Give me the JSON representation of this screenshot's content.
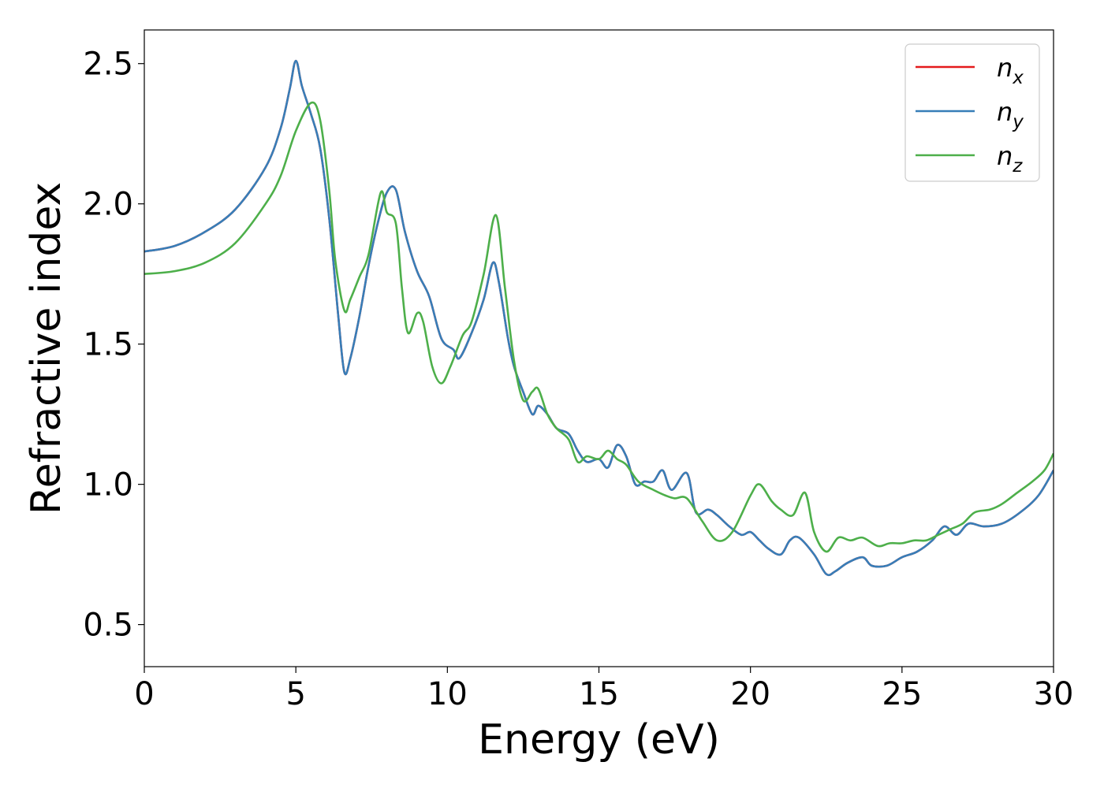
{
  "chart_data": {
    "type": "line",
    "title": "",
    "xlabel": "Energy (eV)",
    "ylabel": "Refractive index",
    "xlim": [
      0,
      30
    ],
    "ylim": [
      0.35,
      2.62
    ],
    "xticks": [
      0,
      5,
      10,
      15,
      20,
      25,
      30
    ],
    "xtick_labels": [
      "0",
      "5",
      "10",
      "15",
      "20",
      "25",
      "30"
    ],
    "yticks": [
      0.5,
      1.0,
      1.5,
      2.0,
      2.5
    ],
    "ytick_labels": [
      "0.5",
      "1.0",
      "1.5",
      "2.0",
      "2.5"
    ],
    "grid": false,
    "legend_position": "top-right",
    "series": [
      {
        "name": "n_x",
        "legend_base": "n",
        "legend_sub": "x",
        "color": "#e41a1c",
        "x": [
          0,
          1,
          2,
          3,
          4,
          4.5,
          4.8,
          5.0,
          5.2,
          5.5,
          5.8,
          6.1,
          6.4,
          6.6,
          6.8,
          7.1,
          7.4,
          7.7,
          8.0,
          8.3,
          8.6,
          9.0,
          9.4,
          9.8,
          10.2,
          10.4,
          10.8,
          11.2,
          11.5,
          11.7,
          12.0,
          12.2,
          12.5,
          12.8,
          13.0,
          13.3,
          13.6,
          14.0,
          14.3,
          14.6,
          15.0,
          15.3,
          15.6,
          15.9,
          16.2,
          16.5,
          16.8,
          17.1,
          17.4,
          17.9,
          18.2,
          18.6,
          18.9,
          19.3,
          19.7,
          20.0,
          20.3,
          20.6,
          21.0,
          21.3,
          21.6,
          22.1,
          22.5,
          22.8,
          23.2,
          23.7,
          24.0,
          24.5,
          25.0,
          25.5,
          26.0,
          26.4,
          26.8,
          27.2,
          27.7,
          28.3,
          28.9,
          29.5,
          30.0
        ],
        "y": [
          1.83,
          1.85,
          1.9,
          1.98,
          2.13,
          2.27,
          2.41,
          2.51,
          2.42,
          2.32,
          2.2,
          1.95,
          1.6,
          1.4,
          1.45,
          1.6,
          1.78,
          1.93,
          2.04,
          2.05,
          1.9,
          1.76,
          1.67,
          1.52,
          1.48,
          1.45,
          1.54,
          1.66,
          1.79,
          1.72,
          1.52,
          1.42,
          1.33,
          1.25,
          1.28,
          1.25,
          1.2,
          1.18,
          1.12,
          1.08,
          1.09,
          1.06,
          1.14,
          1.1,
          1.0,
          1.01,
          1.01,
          1.05,
          0.98,
          1.04,
          0.9,
          0.91,
          0.89,
          0.85,
          0.82,
          0.83,
          0.8,
          0.77,
          0.75,
          0.8,
          0.81,
          0.75,
          0.68,
          0.69,
          0.72,
          0.74,
          0.71,
          0.71,
          0.74,
          0.76,
          0.8,
          0.85,
          0.82,
          0.86,
          0.85,
          0.86,
          0.9,
          0.96,
          1.05
        ]
      },
      {
        "name": "n_y",
        "legend_base": "n",
        "legend_sub": "y",
        "color": "#377eb8",
        "x": [
          0,
          1,
          2,
          3,
          4,
          4.5,
          4.8,
          5.0,
          5.2,
          5.5,
          5.8,
          6.1,
          6.4,
          6.6,
          6.8,
          7.1,
          7.4,
          7.7,
          8.0,
          8.3,
          8.6,
          9.0,
          9.4,
          9.8,
          10.2,
          10.4,
          10.8,
          11.2,
          11.5,
          11.7,
          12.0,
          12.2,
          12.5,
          12.8,
          13.0,
          13.3,
          13.6,
          14.0,
          14.3,
          14.6,
          15.0,
          15.3,
          15.6,
          15.9,
          16.2,
          16.5,
          16.8,
          17.1,
          17.4,
          17.9,
          18.2,
          18.6,
          18.9,
          19.3,
          19.7,
          20.0,
          20.3,
          20.6,
          21.0,
          21.3,
          21.6,
          22.1,
          22.5,
          22.8,
          23.2,
          23.7,
          24.0,
          24.5,
          25.0,
          25.5,
          26.0,
          26.4,
          26.8,
          27.2,
          27.7,
          28.3,
          28.9,
          29.5,
          30.0
        ],
        "y": [
          1.83,
          1.85,
          1.9,
          1.98,
          2.13,
          2.27,
          2.41,
          2.51,
          2.42,
          2.32,
          2.2,
          1.95,
          1.6,
          1.4,
          1.45,
          1.6,
          1.78,
          1.93,
          2.04,
          2.05,
          1.9,
          1.76,
          1.67,
          1.52,
          1.48,
          1.45,
          1.54,
          1.66,
          1.79,
          1.72,
          1.52,
          1.42,
          1.33,
          1.25,
          1.28,
          1.25,
          1.2,
          1.18,
          1.12,
          1.08,
          1.09,
          1.06,
          1.14,
          1.1,
          1.0,
          1.01,
          1.01,
          1.05,
          0.98,
          1.04,
          0.9,
          0.91,
          0.89,
          0.85,
          0.82,
          0.83,
          0.8,
          0.77,
          0.75,
          0.8,
          0.81,
          0.75,
          0.68,
          0.69,
          0.72,
          0.74,
          0.71,
          0.71,
          0.74,
          0.76,
          0.8,
          0.85,
          0.82,
          0.86,
          0.85,
          0.86,
          0.9,
          0.96,
          1.05
        ]
      },
      {
        "name": "n_z",
        "legend_base": "n",
        "legend_sub": "z",
        "color": "#4daf4a",
        "x": [
          0,
          1,
          2,
          3,
          4,
          4.5,
          5.0,
          5.5,
          5.8,
          6.1,
          6.3,
          6.6,
          6.8,
          7.1,
          7.4,
          7.8,
          8.0,
          8.3,
          8.5,
          8.7,
          9.0,
          9.2,
          9.5,
          9.8,
          10.1,
          10.5,
          10.8,
          11.2,
          11.6,
          11.9,
          12.2,
          12.5,
          12.8,
          13.0,
          13.3,
          13.6,
          14.0,
          14.3,
          14.6,
          15.0,
          15.3,
          15.6,
          15.9,
          16.3,
          16.8,
          17.2,
          17.5,
          17.9,
          18.4,
          18.9,
          19.4,
          20.0,
          20.3,
          20.7,
          21.0,
          21.4,
          21.8,
          22.1,
          22.5,
          22.9,
          23.3,
          23.7,
          24.2,
          24.6,
          25.0,
          25.4,
          25.8,
          26.2,
          26.6,
          27.0,
          27.4,
          27.9,
          28.3,
          28.8,
          29.3,
          29.7,
          30.0
        ],
        "y": [
          1.75,
          1.76,
          1.79,
          1.86,
          2.0,
          2.1,
          2.26,
          2.36,
          2.3,
          2.05,
          1.8,
          1.62,
          1.66,
          1.74,
          1.82,
          2.04,
          1.97,
          1.93,
          1.7,
          1.54,
          1.61,
          1.58,
          1.42,
          1.36,
          1.42,
          1.53,
          1.58,
          1.75,
          1.96,
          1.7,
          1.44,
          1.3,
          1.33,
          1.34,
          1.25,
          1.2,
          1.16,
          1.08,
          1.1,
          1.09,
          1.12,
          1.09,
          1.07,
          1.01,
          0.98,
          0.96,
          0.95,
          0.95,
          0.87,
          0.8,
          0.83,
          0.96,
          1.0,
          0.94,
          0.91,
          0.89,
          0.97,
          0.83,
          0.76,
          0.81,
          0.8,
          0.81,
          0.78,
          0.79,
          0.79,
          0.8,
          0.8,
          0.82,
          0.84,
          0.86,
          0.9,
          0.91,
          0.93,
          0.97,
          1.01,
          1.05,
          1.11
        ]
      }
    ]
  }
}
